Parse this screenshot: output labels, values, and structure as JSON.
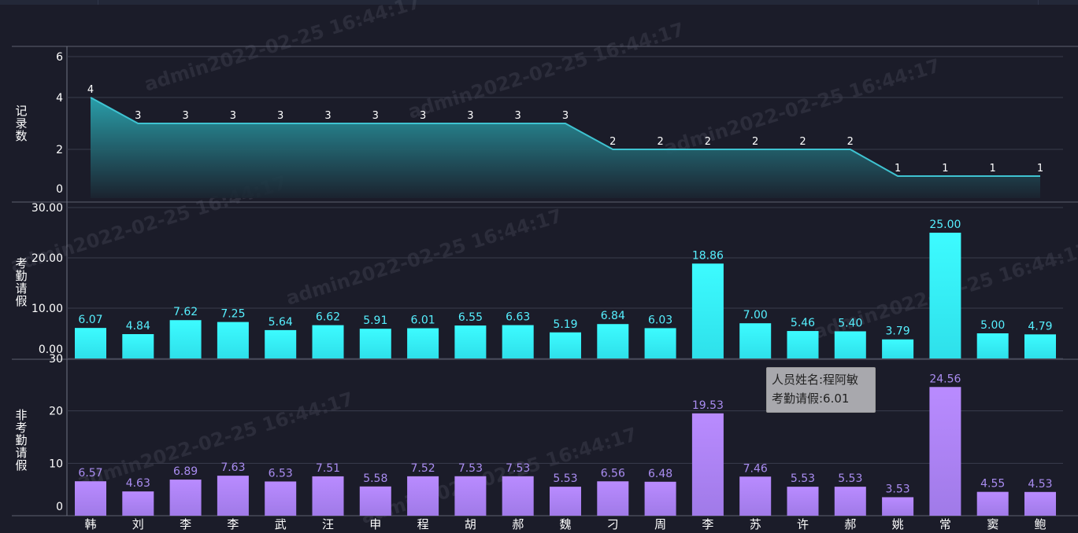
{
  "watermark_text": "admin2022-02-25 16:44:17",
  "tooltip": {
    "line1": "人员姓名:程阿敏",
    "line2": "考勤请假:6.01"
  },
  "chart_data": [
    {
      "type": "area",
      "ylabel": "记录数",
      "ylim": [
        0,
        6
      ],
      "yticks": [
        0,
        2,
        4,
        6
      ],
      "values": [
        4,
        3,
        3,
        3,
        3,
        3,
        3,
        3,
        3,
        3,
        3,
        2,
        2,
        2,
        2,
        2,
        2,
        1,
        1,
        1,
        1
      ],
      "colors": {
        "line": "#3fc3d1",
        "fill_top": "#2aa5b0",
        "fill_bottom": "#1b2430",
        "label": "#ffffff"
      }
    },
    {
      "type": "bar",
      "ylabel": "考勤请假",
      "ylim": [
        0,
        30
      ],
      "yticks": [
        "0.00",
        "10.00",
        "20.00",
        "30.00"
      ],
      "values": [
        6.07,
        4.84,
        7.62,
        7.25,
        5.64,
        6.62,
        5.91,
        6.01,
        6.55,
        6.63,
        5.19,
        6.84,
        6.03,
        18.86,
        7.0,
        5.46,
        5.4,
        3.79,
        25.0,
        5.0,
        4.79
      ],
      "labels": [
        "6.07",
        "4.84",
        "7.62",
        "7.25",
        "5.64",
        "6.62",
        "5.91",
        "6.01",
        "6.55",
        "6.63",
        "5.19",
        "6.84",
        "6.03",
        "18.86",
        "7.00",
        "5.46",
        "5.40",
        "3.79",
        "25.00",
        "5.00",
        "4.79"
      ],
      "colors": {
        "bar_top": "#3dfbff",
        "bar_bottom": "#2ee0ea",
        "label": "#56f0ff"
      }
    },
    {
      "type": "bar",
      "ylabel": "非考勤请假",
      "ylim": [
        0,
        30
      ],
      "yticks": [
        "0",
        "10",
        "20",
        "30"
      ],
      "values": [
        6.57,
        4.63,
        6.89,
        7.63,
        6.53,
        7.51,
        5.58,
        7.52,
        7.53,
        7.53,
        5.53,
        6.56,
        6.48,
        19.53,
        7.46,
        5.53,
        5.53,
        3.53,
        24.56,
        4.55,
        4.53
      ],
      "labels": [
        "6.57",
        "4.63",
        "6.89",
        "7.63",
        "6.53",
        "7.51",
        "5.58",
        "7.52",
        "7.53",
        "7.53",
        "5.53",
        "6.56",
        "6.48",
        "19.53",
        "7.46",
        "5.53",
        "5.53",
        "3.53",
        "24.56",
        "4.55",
        "4.53"
      ],
      "colors": {
        "bar_top": "#b98bff",
        "bar_bottom": "#a07ae8",
        "label": "#a98cf0"
      }
    }
  ],
  "x_categories_visible": [
    "韩",
    "刘",
    "李",
    "李",
    "武",
    "汪",
    "申",
    "程",
    "胡",
    "郝",
    "魏",
    "刁",
    "周",
    "李",
    "苏",
    "许",
    "郝",
    "姚",
    "常",
    "窦",
    "鲍"
  ],
  "colors": {
    "background": "#1b1c29",
    "axis": "#6f7382",
    "grid": "#3a3d4c",
    "text": "#ffffff"
  }
}
